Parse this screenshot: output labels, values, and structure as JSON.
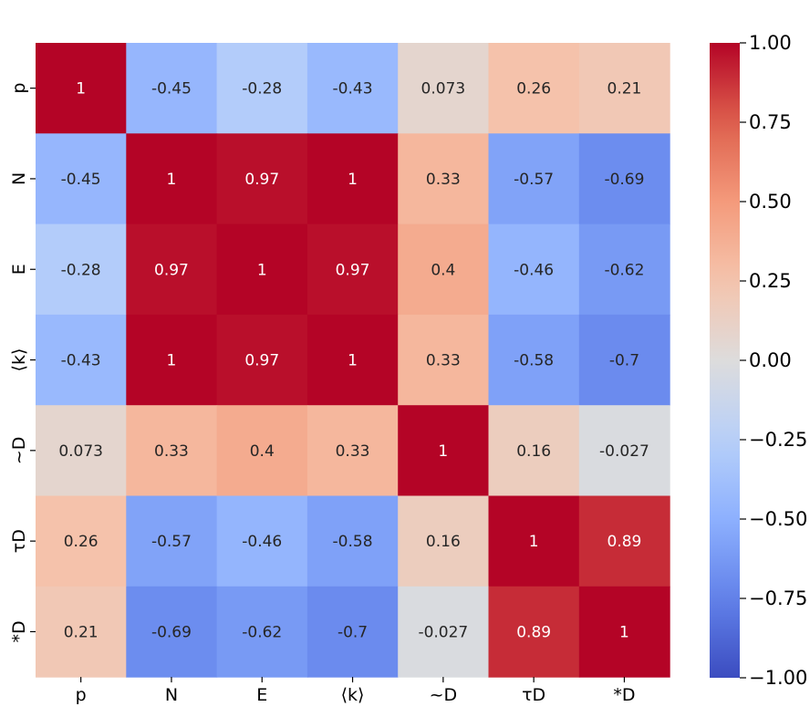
{
  "chart_data": {
    "type": "heatmap",
    "x_labels": [
      "p",
      "N",
      "E",
      "⟨k⟩",
      "~D",
      "τD",
      "*D"
    ],
    "y_labels": [
      "p",
      "N",
      "E",
      "⟨k⟩",
      "~D",
      "τD",
      "*D"
    ],
    "values": [
      [
        1,
        -0.45,
        -0.28,
        -0.43,
        0.073,
        0.26,
        0.21
      ],
      [
        -0.45,
        1,
        0.97,
        1,
        0.33,
        -0.57,
        -0.69
      ],
      [
        -0.28,
        0.97,
        1,
        0.97,
        0.4,
        -0.46,
        -0.62
      ],
      [
        -0.43,
        1,
        0.97,
        1,
        0.33,
        -0.58,
        -0.7
      ],
      [
        0.073,
        0.33,
        0.4,
        0.33,
        1,
        0.16,
        -0.027
      ],
      [
        0.26,
        -0.57,
        -0.46,
        -0.58,
        0.16,
        1,
        0.89
      ],
      [
        0.21,
        -0.69,
        -0.62,
        -0.7,
        -0.027,
        0.89,
        1
      ]
    ],
    "cell_labels": [
      [
        "1",
        "-0.45",
        "-0.28",
        "-0.43",
        "0.073",
        "0.26",
        "0.21"
      ],
      [
        "-0.45",
        "1",
        "0.97",
        "1",
        "0.33",
        "-0.57",
        "-0.69"
      ],
      [
        "-0.28",
        "0.97",
        "1",
        "0.97",
        "0.4",
        "-0.46",
        "-0.62"
      ],
      [
        "-0.43",
        "1",
        "0.97",
        "1",
        "0.33",
        "-0.58",
        "-0.7"
      ],
      [
        "0.073",
        "0.33",
        "0.4",
        "0.33",
        "1",
        "0.16",
        "-0.027"
      ],
      [
        "0.26",
        "-0.57",
        "-0.46",
        "-0.58",
        "0.16",
        "1",
        "0.89"
      ],
      [
        "0.21",
        "-0.69",
        "-0.62",
        "-0.7",
        "-0.027",
        "0.89",
        "1"
      ]
    ],
    "colormap": "coolwarm",
    "vmin": -1,
    "vmax": 1,
    "colorbar_ticks": [
      1,
      0.75,
      0.5,
      0.25,
      0,
      -0.25,
      -0.5,
      -0.75,
      -1
    ],
    "colorbar_tick_labels": [
      "1.00",
      "0.75",
      "0.50",
      "0.25",
      "0.00",
      "−0.25",
      "−0.50",
      "−0.75",
      "−1.00"
    ],
    "title": "",
    "xlabel": "",
    "ylabel": ""
  }
}
